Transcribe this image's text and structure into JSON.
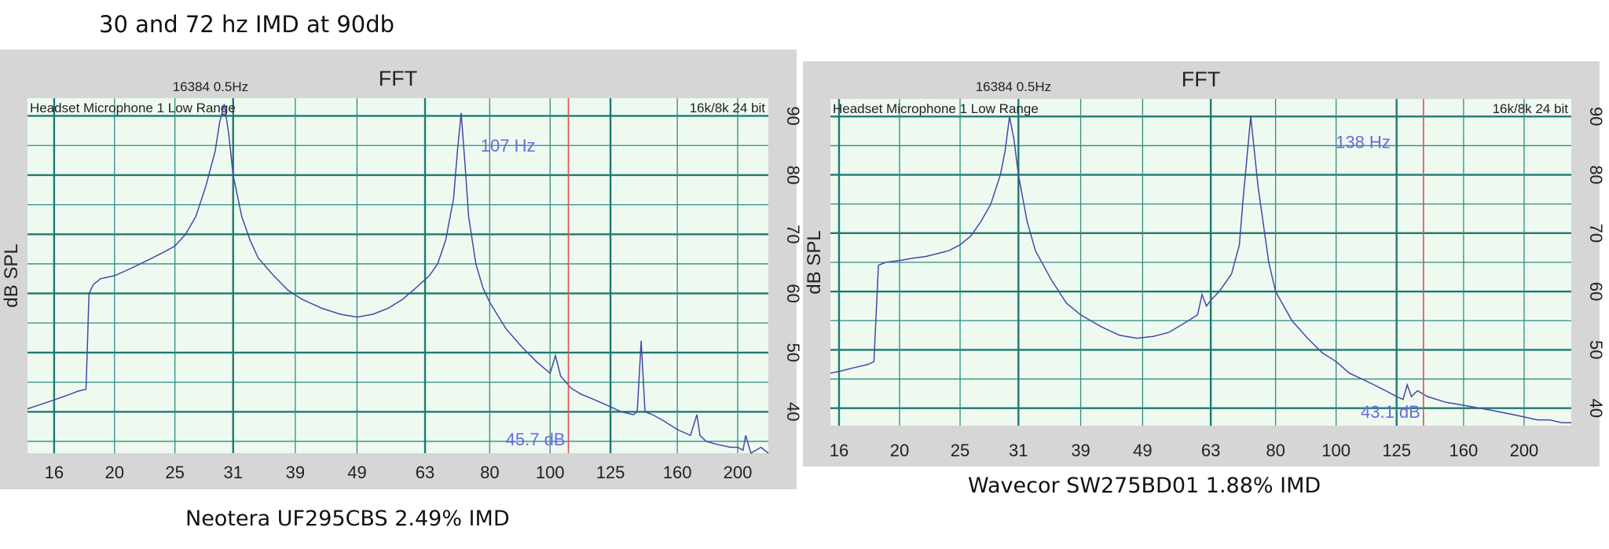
{
  "page": {
    "title": "30 and 72 hz IMD at 90db",
    "captions": [
      "Neotera UF295CBS 2.49% IMD",
      "Wavecor SW275BD01 1.88% IMD"
    ]
  },
  "chart_data": [
    {
      "type": "line",
      "title": "FFT",
      "subtitle": "16384  0.5Hz",
      "top_left_label": "Headset Microphone 1 Low Range",
      "top_right_label": "16k/8k 24 bit",
      "ylabel": "dB SPL",
      "x_scale": "log",
      "xlim": [
        14.5,
        224
      ],
      "ylim": [
        33,
        93
      ],
      "x_ticks": [
        "16",
        "20",
        "25",
        "31",
        "39",
        "49",
        "63",
        "80",
        "100",
        "125",
        "160",
        "200"
      ],
      "y_ticks": [
        "40",
        "50",
        "60",
        "70",
        "80",
        "90"
      ],
      "grid": true,
      "marker": {
        "x": 107,
        "freq_label": "107 Hz",
        "level_label": "45.7 dB"
      },
      "series": [
        {
          "x": [
            14.5,
            15,
            16,
            17,
            17.5,
            18,
            18.2,
            18.5,
            19,
            20,
            21,
            22,
            23,
            24,
            25,
            26,
            27,
            28,
            29,
            29.5,
            30,
            30.5,
            31,
            32,
            33,
            34,
            36,
            38,
            40,
            43,
            46,
            49,
            52,
            55,
            58,
            61,
            64,
            66,
            68,
            70,
            71,
            72,
            73,
            74,
            76,
            78,
            80,
            85,
            90,
            95,
            100,
            102,
            104,
            106,
            108,
            112,
            118,
            124,
            130,
            136,
            138,
            140,
            142,
            146,
            152,
            160,
            168,
            172,
            174,
            178,
            185,
            195,
            200,
            204,
            206,
            210,
            218,
            224
          ],
          "y": [
            40.5,
            41,
            42,
            43,
            43.5,
            43.8,
            60,
            61.5,
            62.5,
            63,
            64,
            65,
            66,
            67,
            68,
            70,
            73,
            78,
            84,
            89,
            92,
            87,
            80,
            73,
            69,
            66,
            63,
            60.5,
            59,
            57.5,
            56.5,
            56,
            56.5,
            57.5,
            59,
            61,
            63,
            65,
            69,
            76,
            84,
            90.5,
            82,
            73,
            65,
            61,
            58.5,
            54,
            51,
            48.5,
            46.5,
            49.5,
            46,
            45,
            44,
            43,
            42,
            41,
            40,
            39.5,
            40,
            52,
            40,
            39.5,
            38.5,
            37,
            36,
            39.5,
            36,
            35,
            34.5,
            34,
            34,
            33.5,
            36,
            33,
            34,
            33
          ]
        }
      ]
    },
    {
      "type": "line",
      "title": "FFT",
      "subtitle": "16384  0.5Hz",
      "top_left_label": "Headset Microphone 1 Low Range",
      "top_right_label": "16k/8k 24 bit",
      "ylabel": "dB SPL",
      "x_scale": "log",
      "xlim": [
        15.5,
        238
      ],
      "ylim": [
        37,
        93
      ],
      "x_ticks": [
        "16",
        "20",
        "25",
        "31",
        "39",
        "49",
        "63",
        "80",
        "100",
        "125",
        "160",
        "200"
      ],
      "y_ticks": [
        "40",
        "50",
        "60",
        "70",
        "80",
        "90"
      ],
      "grid": true,
      "marker": {
        "x": 138,
        "freq_label": "138 Hz",
        "level_label": "43.1 dB"
      },
      "series": [
        {
          "x": [
            15.5,
            16,
            17,
            17.8,
            18.2,
            18.5,
            19,
            20,
            21,
            22,
            23,
            24,
            25,
            26,
            27,
            28,
            29,
            29.5,
            30,
            30.5,
            31,
            32,
            33,
            35,
            37,
            39,
            42,
            45,
            48,
            51,
            54,
            57,
            60,
            61,
            62,
            63,
            65,
            68,
            70,
            71,
            72,
            73,
            75,
            78,
            80,
            85,
            90,
            95,
            100,
            105,
            110,
            115,
            120,
            125,
            128,
            130,
            132,
            135,
            140,
            150,
            160,
            170,
            180,
            190,
            200,
            210,
            220,
            230,
            238
          ],
          "y": [
            46,
            46.3,
            47,
            47.5,
            48,
            64.5,
            65,
            65.3,
            65.7,
            66,
            66.5,
            67,
            68,
            69.5,
            72,
            75,
            80,
            84,
            90,
            86,
            80,
            72,
            67,
            62,
            58,
            56,
            54,
            52.5,
            52,
            52.3,
            53,
            54.5,
            56,
            59.5,
            57.5,
            58.5,
            60,
            63,
            68,
            76,
            83,
            90,
            78,
            65,
            60,
            55,
            52,
            49.5,
            48,
            46,
            45,
            44,
            43,
            42,
            41.5,
            44,
            42,
            43,
            42,
            41,
            40.5,
            40,
            39.5,
            39,
            38.5,
            38,
            38,
            37.5,
            37.5
          ]
        }
      ]
    }
  ]
}
